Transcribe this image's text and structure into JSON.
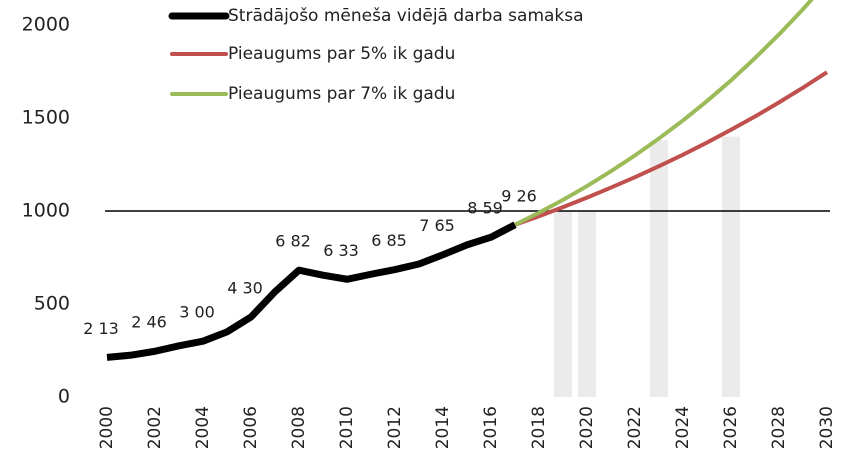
{
  "chart_data": {
    "type": "line",
    "xlim": [
      2000,
      2030
    ],
    "xticks": [
      2000,
      2002,
      2004,
      2006,
      2008,
      2010,
      2012,
      2014,
      2016,
      2018,
      2020,
      2022,
      2024,
      2026,
      2028,
      2030
    ],
    "ylim": [
      0,
      2000
    ],
    "yticks": [
      0,
      500,
      1000,
      1500,
      2000
    ],
    "reference_line": 1000,
    "series": [
      {
        "name": "Strādājošo mēneša vidējā darba samaksa",
        "color": "#000000",
        "x": [
          2000,
          2001,
          2002,
          2003,
          2004,
          2005,
          2006,
          2007,
          2008,
          2009,
          2010,
          2011,
          2012,
          2013,
          2014,
          2015,
          2016,
          2017
        ],
        "values": [
          213,
          225,
          246,
          275,
          300,
          350,
          430,
          566,
          682,
          655,
          633,
          660,
          685,
          715,
          765,
          818,
          859,
          926
        ],
        "value_labels": [
          "2 13",
          null,
          "2 46",
          null,
          "3 00",
          null,
          "4 30",
          null,
          "6 82",
          null,
          "6 33",
          null,
          "6 85",
          null,
          "7 65",
          null,
          "8 59",
          "9 26"
        ]
      },
      {
        "name": "Pieaugums par 5% ik gadu",
        "color": "#c0504d",
        "x": [
          2017,
          2018,
          2019,
          2020,
          2021,
          2022,
          2023,
          2024,
          2025,
          2026,
          2027,
          2028,
          2029,
          2030
        ],
        "values": [
          926,
          972,
          1021,
          1072,
          1126,
          1182,
          1241,
          1303,
          1368,
          1437,
          1508,
          1584,
          1663,
          1746
        ]
      },
      {
        "name": "Pieaugums par 7% ik gadu",
        "color": "#9bbb59",
        "x": [
          2017,
          2018,
          2019,
          2020,
          2021,
          2022,
          2023,
          2024,
          2025,
          2026,
          2027,
          2028,
          2029,
          2030
        ],
        "values": [
          926,
          991,
          1060,
          1134,
          1214,
          1299,
          1390,
          1487,
          1591,
          1702,
          1822,
          1949,
          2085,
          2231
        ]
      }
    ],
    "bars": {
      "color": "#ebebeb",
      "x": [
        2019,
        2020,
        2023,
        2026
      ],
      "values": [
        1000,
        1000,
        1380,
        1400
      ]
    }
  }
}
